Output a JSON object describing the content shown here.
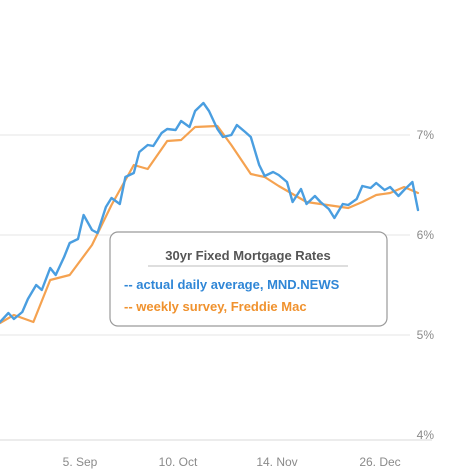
{
  "chart_data": {
    "type": "line",
    "legend": {
      "title": "30yr Fixed Mortgage Rates",
      "placement": "center-right",
      "entries": [
        "-- actual daily average, MND.NEWS",
        "-- weekly survey, Freddie Mac"
      ]
    },
    "y_ticks": [
      "4%",
      "5%",
      "6%",
      "7%"
    ],
    "x_ticks": [
      "5. Sep",
      "10. Oct",
      "14. Nov",
      "26. Dec"
    ],
    "ylim": [
      3.95,
      7.95
    ],
    "grid": "horizontal",
    "colors": {
      "daily": "#4a9ee0",
      "weekly": "#f5a250",
      "grid": "#e6e6e6"
    },
    "series": [
      {
        "key": "daily",
        "color": "#4a9ee0",
        "x": [
          0,
          3,
          5,
          8,
          10,
          13,
          15,
          18,
          20,
          23,
          25,
          28,
          30,
          33,
          35,
          38,
          40,
          43,
          45,
          48,
          50,
          53,
          55,
          58,
          60,
          63,
          65,
          68,
          70,
          73,
          75,
          78,
          80,
          83,
          85,
          88,
          90,
          93,
          95,
          98,
          100,
          103,
          105,
          108,
          110,
          113,
          115,
          118,
          120,
          123,
          125,
          128,
          130,
          133,
          135,
          138,
          140,
          143,
          145,
          148,
          150
        ],
        "values": [
          5.13,
          5.22,
          5.16,
          5.23,
          5.36,
          5.5,
          5.45,
          5.67,
          5.6,
          5.78,
          5.92,
          5.96,
          6.2,
          6.05,
          6.02,
          6.28,
          6.37,
          6.31,
          6.58,
          6.62,
          6.83,
          6.9,
          6.89,
          7.02,
          7.06,
          7.05,
          7.14,
          7.08,
          7.24,
          7.32,
          7.24,
          7.06,
          6.98,
          7.0,
          7.1,
          7.03,
          6.98,
          6.7,
          6.59,
          6.63,
          6.6,
          6.53,
          6.33,
          6.46,
          6.31,
          6.39,
          6.33,
          6.26,
          6.17,
          6.31,
          6.3,
          6.36,
          6.49,
          6.47,
          6.52,
          6.45,
          6.48,
          6.39,
          6.45,
          6.53,
          6.25
        ]
      },
      {
        "key": "weekly",
        "color": "#f5a250",
        "x": [
          0,
          5,
          12,
          18,
          25,
          33,
          40,
          48,
          53,
          60,
          65,
          70,
          78,
          83,
          90,
          95,
          100,
          110,
          115,
          125,
          130,
          135,
          140,
          145,
          150
        ],
        "values": [
          5.12,
          5.2,
          5.13,
          5.55,
          5.6,
          5.9,
          6.3,
          6.7,
          6.66,
          6.94,
          6.95,
          7.08,
          7.09,
          6.9,
          6.61,
          6.58,
          6.49,
          6.33,
          6.31,
          6.27,
          6.33,
          6.4,
          6.42,
          6.48,
          6.42
        ]
      }
    ]
  }
}
